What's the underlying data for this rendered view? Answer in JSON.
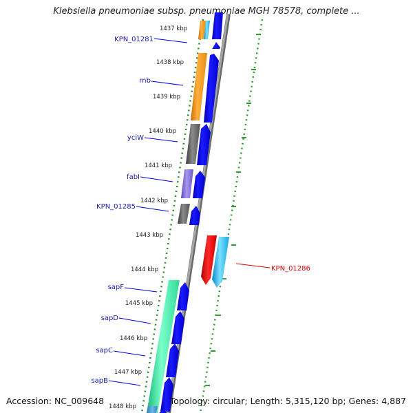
{
  "title": "Klebsiella pneumoniae subsp. pneumoniae MGH 78578, complete ...",
  "footer": {
    "accession": "Accession: NC_009648",
    "summary": "Topology: circular; Length: 5,315,120 bp; Genes: 4,887"
  },
  "ticks": [
    "1437 kbp",
    "1438 kbp",
    "1439 kbp",
    "1440 kbp",
    "1441 kbp",
    "1442 kbp",
    "1443 kbp",
    "1444 kbp",
    "1445 kbp",
    "1446 kbp",
    "1447 kbp",
    "1448 kbp"
  ],
  "gene_labels": [
    {
      "name": "KPN_01281",
      "color": "#1a1aaa"
    },
    {
      "name": "rnb",
      "color": "#1a1aaa"
    },
    {
      "name": "yciW",
      "color": "#1a1aaa"
    },
    {
      "name": "fabI",
      "color": "#1a1aaa"
    },
    {
      "name": "KPN_01285",
      "color": "#1a1aaa"
    },
    {
      "name": "sapF",
      "color": "#1a1aaa"
    },
    {
      "name": "sapD",
      "color": "#1a1aaa"
    },
    {
      "name": "sapC",
      "color": "#1a1aaa"
    },
    {
      "name": "sapB",
      "color": "#1a1aaa"
    },
    {
      "name": "KPN_01286",
      "color": "#dd0000"
    }
  ],
  "colors": {
    "backbone": "#8c8c8c",
    "gene_blue": "#0000ee",
    "gc_green": "#2a8a2a",
    "skew_green": "#2e9e2e"
  }
}
